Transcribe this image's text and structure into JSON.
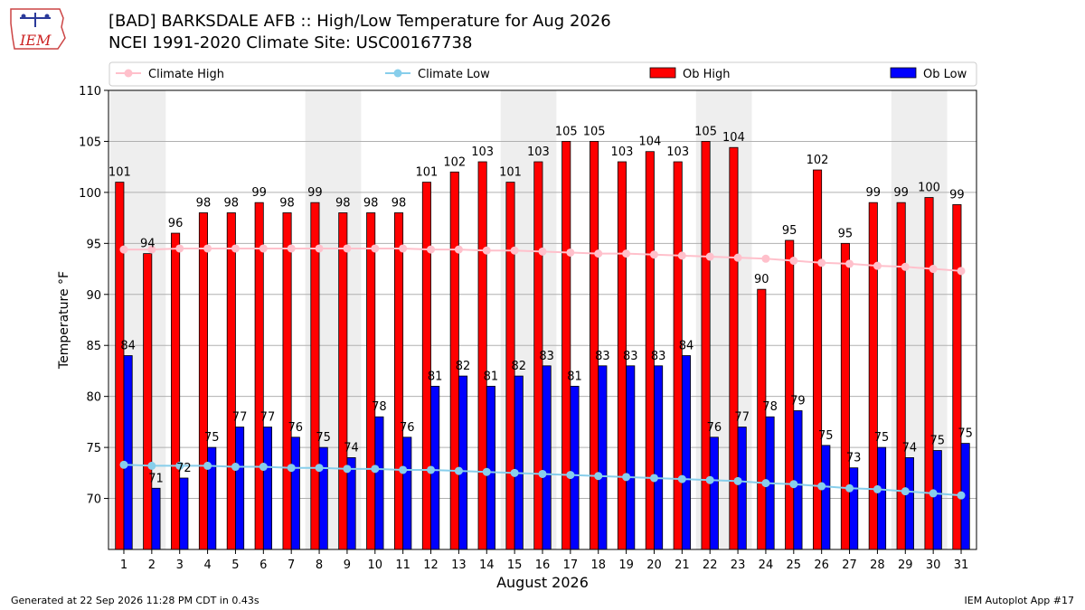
{
  "header": {
    "title_line1": "[BAD] BARKSDALE AFB :: High/Low Temperature for Aug 2026",
    "title_line2": "NCEI 1991-2020 Climate Site: USC00167738"
  },
  "logo": {
    "text": "IEM"
  },
  "footer": {
    "generated": "Generated at 22 Sep 2026 11:28 PM CDT in 0.43s",
    "app": "IEM Autoplot App #17"
  },
  "colors": {
    "ob_high": "#ff0000",
    "ob_low": "#0000ff",
    "climate_high": "#ffc0cb",
    "climate_low": "#87ceeb",
    "weekend_band": "#eeeeee",
    "grid": "#b0b0b0"
  },
  "chart_data": {
    "type": "bar",
    "xlabel": "August 2026",
    "ylabel": "Temperature °F",
    "ylim": [
      65,
      110
    ],
    "yticks": [
      70,
      75,
      80,
      85,
      90,
      95,
      100,
      105,
      110
    ],
    "grid": true,
    "legend_placement": "top",
    "weekend_bands": [
      [
        1,
        2
      ],
      [
        8,
        9
      ],
      [
        15,
        16
      ],
      [
        22,
        23
      ],
      [
        29,
        30
      ]
    ],
    "categories": [
      1,
      2,
      3,
      4,
      5,
      6,
      7,
      8,
      9,
      10,
      11,
      12,
      13,
      14,
      15,
      16,
      17,
      18,
      19,
      20,
      21,
      22,
      23,
      24,
      25,
      26,
      27,
      28,
      29,
      30,
      31
    ],
    "series": [
      {
        "name": "Ob High",
        "kind": "bar",
        "values": [
          101,
          94,
          96,
          98,
          98,
          99,
          98,
          99,
          98,
          98,
          98,
          101,
          102,
          103,
          101,
          103,
          105,
          105,
          103,
          104,
          103,
          105,
          104.4,
          90.5,
          95.3,
          102.2,
          95,
          99,
          99,
          99.5,
          98.8
        ],
        "labels": [
          "101",
          "94",
          "96",
          "98",
          "98",
          "99",
          "98",
          "99",
          "98",
          "98",
          "98",
          "101",
          "102",
          "103",
          "101",
          "103",
          "105",
          "105",
          "103",
          "104",
          "103",
          "105",
          "104",
          "90",
          "95",
          "102",
          "95",
          "99",
          "99",
          "100",
          "99"
        ]
      },
      {
        "name": "Ob Low",
        "kind": "bar",
        "values": [
          84,
          71,
          72,
          75,
          77,
          77,
          76,
          75,
          74,
          78,
          76,
          81,
          82,
          81,
          82,
          83,
          81,
          83,
          83,
          83,
          84,
          76,
          77,
          78,
          78.6,
          75.2,
          73,
          75,
          74,
          74.7,
          75.4
        ],
        "labels": [
          "84",
          "71",
          "72",
          "75",
          "77",
          "77",
          "76",
          "75",
          "74",
          "78",
          "76",
          "81",
          "82",
          "81",
          "82",
          "83",
          "81",
          "83",
          "83",
          "83",
          "84",
          "76",
          "77",
          "78",
          "79",
          "75",
          "73",
          "75",
          "74",
          "75",
          "75"
        ]
      },
      {
        "name": "Climate High",
        "kind": "line",
        "values": [
          94.4,
          94.4,
          94.5,
          94.5,
          94.5,
          94.5,
          94.5,
          94.5,
          94.5,
          94.5,
          94.5,
          94.4,
          94.4,
          94.3,
          94.3,
          94.2,
          94.1,
          94,
          94,
          93.9,
          93.8,
          93.7,
          93.6,
          93.5,
          93.3,
          93.1,
          93,
          92.8,
          92.7,
          92.5,
          92.3
        ]
      },
      {
        "name": "Climate Low",
        "kind": "line",
        "values": [
          73.3,
          73.2,
          73.2,
          73.2,
          73.1,
          73.1,
          73,
          73,
          72.9,
          72.9,
          72.8,
          72.8,
          72.7,
          72.6,
          72.5,
          72.4,
          72.3,
          72.2,
          72.1,
          72,
          71.9,
          71.8,
          71.7,
          71.5,
          71.4,
          71.2,
          71,
          70.9,
          70.7,
          70.5,
          70.3
        ]
      }
    ]
  }
}
